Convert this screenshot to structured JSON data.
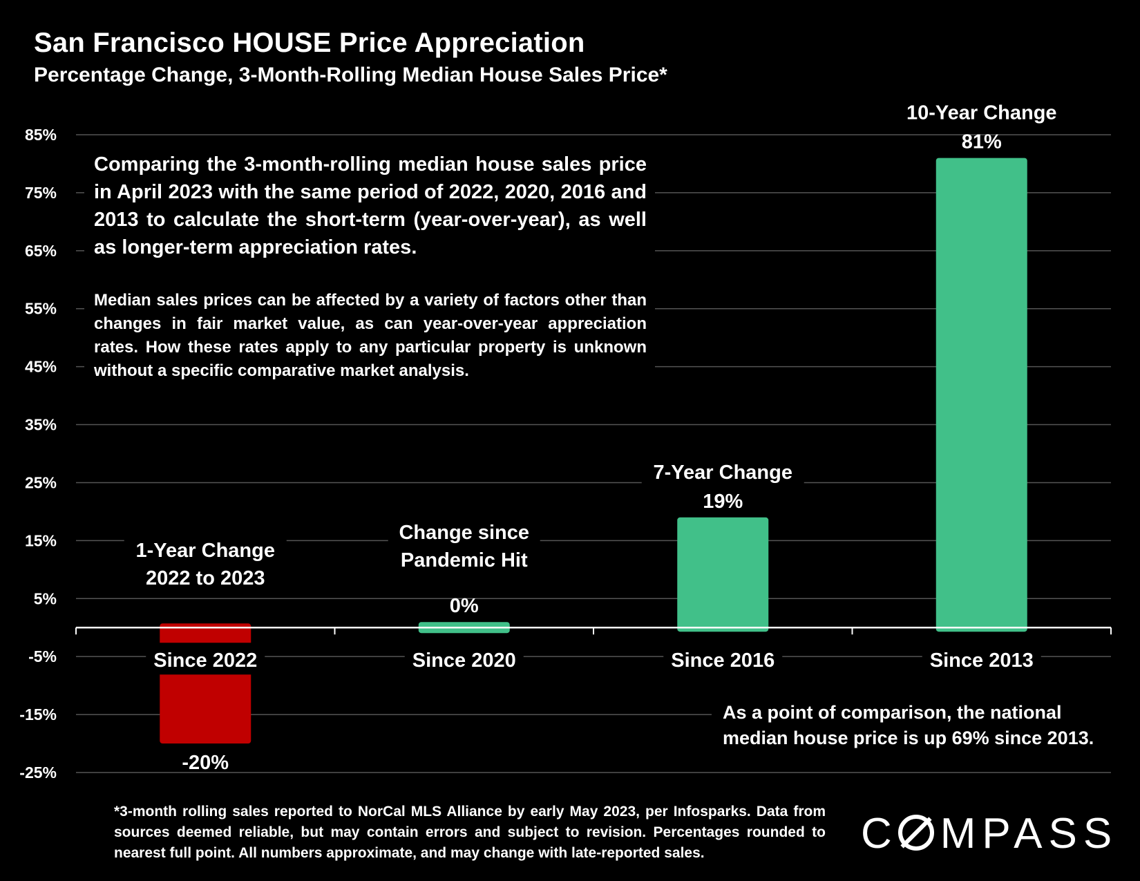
{
  "chart_data": {
    "type": "bar",
    "title": "San Francisco HOUSE Price Appreciation",
    "subtitle": "Percentage Change, 3-Month-Rolling Median House Sales Price*",
    "categories": [
      "Since 2022",
      "Since 2020",
      "Since 2016",
      "Since 2013"
    ],
    "values": [
      -20,
      0,
      19,
      81
    ],
    "value_labels": [
      "-20%",
      "0%",
      "19%",
      "81%"
    ],
    "group_labels": [
      [
        "1-Year Change",
        "2022 to 2023"
      ],
      [
        "Change since",
        "Pandemic Hit"
      ],
      [
        "7-Year Change"
      ],
      [
        "10-Year Change"
      ]
    ],
    "y_ticks": [
      85,
      75,
      65,
      55,
      45,
      35,
      25,
      15,
      5,
      -5,
      -15,
      -25
    ],
    "y_tick_labels": [
      "85%",
      "75%",
      "65%",
      "55%",
      "45%",
      "35%",
      "25%",
      "15%",
      "5%",
      "-5%",
      "-15%",
      "-25%"
    ],
    "ylim": [
      -25,
      85
    ],
    "xlabel": "",
    "ylabel": "",
    "grid": true,
    "legend": "none"
  },
  "notes": {
    "main": "Comparing the 3-month-rolling median house sales price in April 2023 with the same period of 2022, 2020, 2016 and 2013 to calculate the short-term (year-over-year), as well as longer-term appreciation rates.",
    "secondary": "Median sales prices can be affected by a variety of factors other than changes in fair market value, as can year-over-year appreciation rates. How these rates apply to any particular property is unknown without a specific comparative market analysis.",
    "comparison": "As a point of comparison, the national median house price is up 69% since 2013."
  },
  "footnote": "*3-month rolling sales reported to NorCal MLS Alliance by early May 2023, per Infosparks. Data from sources deemed reliable, but may contain errors and subject to revision. Percentages rounded to nearest full point. All numbers approximate, and may change with late-reported sales.",
  "logo": {
    "mark": "COMPASS",
    "prefix": "C",
    "suffix": "MPASS"
  },
  "colors": {
    "background": "#000000",
    "positive": "#41c089",
    "negative": "#c00000",
    "grid": "#555555",
    "axis": "#ffffff",
    "text": "#ffffff"
  }
}
